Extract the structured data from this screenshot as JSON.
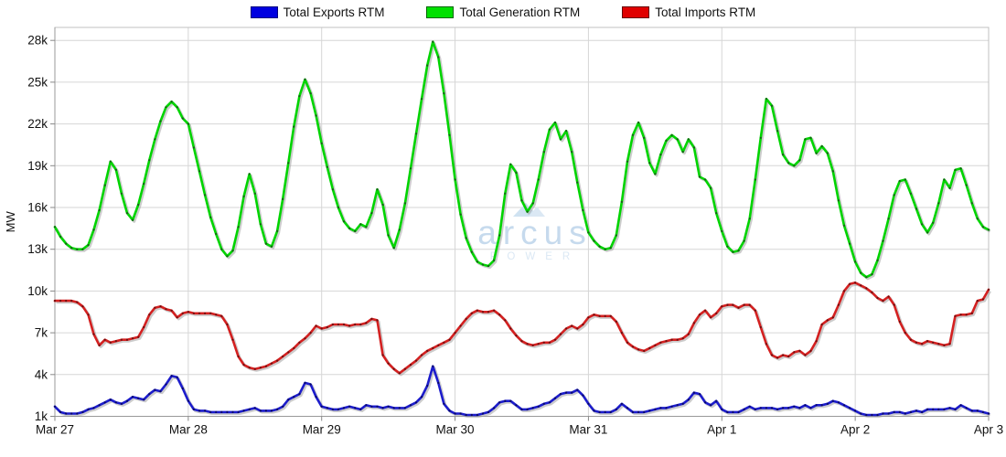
{
  "legend": [
    {
      "label": "Total Exports RTM",
      "color": "#0000e0",
      "border": "#000080"
    },
    {
      "label": "Total Generation RTM",
      "color": "#00e000",
      "border": "#006600"
    },
    {
      "label": "Total Imports RTM",
      "color": "#e00000",
      "border": "#660000"
    }
  ],
  "watermark": {
    "name": "arcus",
    "subtitle": "POWER",
    "icon": "mountain-triangle-icon",
    "text_color": "#c6daed",
    "subtitle_color": "#dbe8f4",
    "icon_color": "#cfe2f1"
  },
  "y_axis": {
    "label": "MW",
    "min": 1000,
    "max": 28000,
    "step": 3000,
    "tick_labels": [
      "1k",
      "4k",
      "7k",
      "10k",
      "13k",
      "16k",
      "19k",
      "22k",
      "25k",
      "28k"
    ]
  },
  "x_axis": {
    "tick_labels": [
      "Mar 27",
      "Mar 28",
      "Mar 29",
      "Mar 30",
      "Mar 31",
      "Apr 1",
      "Apr 2",
      "Apr 3"
    ]
  },
  "chart_data": {
    "type": "line",
    "title": "",
    "xlabel": "",
    "ylabel": "MW",
    "ylim": [
      1000,
      28000
    ],
    "grid": true,
    "legend_position": "top-center",
    "x_unit": "hours, Mar 27 00:00 - Apr 3 00:00, hourly",
    "x_tick_labels": [
      "Mar 27",
      "Mar 28",
      "Mar 29",
      "Mar 30",
      "Mar 31",
      "Apr 1",
      "Apr 2",
      "Apr 3"
    ],
    "series": [
      {
        "name": "Total Exports RTM",
        "color": "#1c1ccc",
        "marker_color": "#0a0a66",
        "values": [
          1700,
          1300,
          1200,
          1200,
          1200,
          1300,
          1500,
          1600,
          1800,
          2000,
          2200,
          2000,
          1900,
          2100,
          2400,
          2300,
          2200,
          2600,
          2900,
          2800,
          3300,
          3900,
          3800,
          3000,
          2100,
          1500,
          1400,
          1400,
          1300,
          1300,
          1300,
          1300,
          1300,
          1300,
          1400,
          1500,
          1600,
          1400,
          1400,
          1400,
          1500,
          1700,
          2200,
          2400,
          2600,
          3400,
          3300,
          2400,
          1700,
          1600,
          1500,
          1500,
          1600,
          1700,
          1600,
          1500,
          1800,
          1700,
          1700,
          1600,
          1700,
          1600,
          1600,
          1600,
          1800,
          2000,
          2400,
          3200,
          4600,
          3400,
          1900,
          1400,
          1200,
          1200,
          1100,
          1100,
          1100,
          1200,
          1300,
          1600,
          2000,
          2100,
          2100,
          1800,
          1500,
          1500,
          1600,
          1700,
          1900,
          2000,
          2300,
          2600,
          2700,
          2700,
          2900,
          2500,
          1900,
          1400,
          1300,
          1300,
          1300,
          1500,
          1900,
          1600,
          1300,
          1300,
          1300,
          1400,
          1500,
          1600,
          1600,
          1700,
          1800,
          1900,
          2200,
          2700,
          2600,
          2000,
          1800,
          2100,
          1500,
          1300,
          1300,
          1300,
          1500,
          1700,
          1500,
          1600,
          1600,
          1600,
          1500,
          1600,
          1600,
          1700,
          1600,
          1800,
          1600,
          1800,
          1800,
          1900,
          2100,
          2000,
          1800,
          1600,
          1400,
          1200,
          1100,
          1100,
          1100,
          1200,
          1200,
          1300,
          1300,
          1200,
          1300,
          1400,
          1300,
          1500,
          1500,
          1500,
          1500,
          1600,
          1500,
          1800,
          1600,
          1400,
          1400,
          1300,
          1200
        ]
      },
      {
        "name": "Total Generation RTM",
        "color": "#00d400",
        "marker_color": "#1a5c1a",
        "values": [
          14600,
          13900,
          13400,
          13100,
          13000,
          13000,
          13300,
          14400,
          15800,
          17600,
          19300,
          18700,
          17000,
          15600,
          15100,
          16200,
          17700,
          19400,
          20900,
          22200,
          23200,
          23600,
          23200,
          22400,
          22000,
          20300,
          18600,
          16900,
          15300,
          14100,
          13000,
          12500,
          12900,
          14600,
          16800,
          18400,
          17000,
          14800,
          13400,
          13200,
          14300,
          16600,
          19200,
          21800,
          24000,
          25200,
          24200,
          22600,
          20600,
          18900,
          17300,
          16000,
          15000,
          14500,
          14300,
          14800,
          14600,
          15600,
          17300,
          16200,
          14000,
          13100,
          14400,
          16300,
          18800,
          21300,
          23800,
          26200,
          27900,
          26800,
          24200,
          21200,
          18000,
          15500,
          13800,
          12800,
          12100,
          11900,
          11800,
          12200,
          14000,
          17000,
          19100,
          18500,
          16500,
          15700,
          16300,
          18000,
          20000,
          21600,
          22100,
          20900,
          21500,
          20000,
          17800,
          15800,
          14200,
          13600,
          13200,
          13000,
          13100,
          14000,
          16400,
          19300,
          21200,
          22100,
          21000,
          19200,
          18400,
          19800,
          20800,
          21200,
          20900,
          20000,
          20900,
          20300,
          18200,
          18000,
          17400,
          15600,
          14300,
          13200,
          12800,
          12900,
          13600,
          15200,
          18000,
          21000,
          23800,
          23300,
          21500,
          19800,
          19200,
          19000,
          19400,
          20900,
          21000,
          19900,
          20400,
          19900,
          18600,
          16500,
          14700,
          13400,
          12100,
          11300,
          11000,
          11200,
          12200,
          13600,
          15200,
          16900,
          17900,
          18000,
          17000,
          15900,
          14800,
          14200,
          14900,
          16300,
          18000,
          17400,
          18700,
          18800,
          17600,
          16300,
          15200,
          14600,
          14400
        ]
      },
      {
        "name": "Total Imports RTM",
        "color": "#d42020",
        "marker_color": "#6e1010",
        "values": [
          9300,
          9300,
          9300,
          9300,
          9200,
          8900,
          8300,
          6900,
          6100,
          6500,
          6300,
          6400,
          6500,
          6500,
          6600,
          6700,
          7400,
          8300,
          8800,
          8900,
          8700,
          8600,
          8100,
          8400,
          8500,
          8400,
          8400,
          8400,
          8400,
          8300,
          8200,
          7600,
          6500,
          5300,
          4700,
          4500,
          4400,
          4500,
          4600,
          4800,
          5000,
          5300,
          5600,
          5900,
          6300,
          6600,
          7000,
          7500,
          7300,
          7400,
          7600,
          7600,
          7600,
          7500,
          7600,
          7600,
          7700,
          8000,
          7900,
          5400,
          4800,
          4400,
          4100,
          4400,
          4700,
          5000,
          5400,
          5700,
          5900,
          6100,
          6300,
          6500,
          7000,
          7500,
          8000,
          8400,
          8600,
          8500,
          8500,
          8600,
          8300,
          7900,
          7300,
          6800,
          6400,
          6200,
          6100,
          6200,
          6300,
          6300,
          6500,
          6900,
          7300,
          7500,
          7300,
          7600,
          8100,
          8300,
          8200,
          8200,
          8200,
          7800,
          7000,
          6300,
          6000,
          5800,
          5700,
          5900,
          6100,
          6300,
          6400,
          6500,
          6500,
          6600,
          6900,
          7700,
          8300,
          8600,
          8100,
          8400,
          8900,
          9000,
          9000,
          8800,
          9000,
          9000,
          8600,
          7400,
          6200,
          5400,
          5200,
          5400,
          5300,
          5600,
          5700,
          5400,
          5700,
          6400,
          7600,
          7900,
          8100,
          9000,
          10000,
          10500,
          10600,
          10400,
          10200,
          9900,
          9500,
          9300,
          9600,
          9000,
          7800,
          7000,
          6500,
          6300,
          6200,
          6400,
          6300,
          6200,
          6100,
          6200,
          8200,
          8300,
          8300,
          8400,
          9300,
          9400,
          10100
        ]
      }
    ]
  }
}
